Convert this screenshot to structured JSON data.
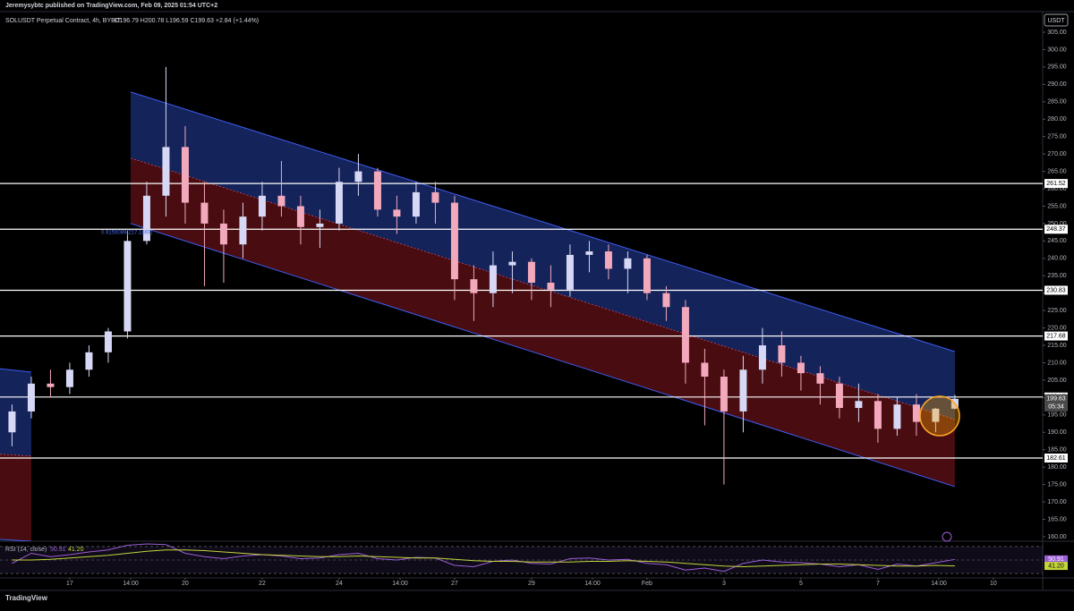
{
  "chart_data": {
    "type": "candlestick",
    "publisher": "Jeremysybtc published on TradingView.com, Feb 09, 2025 01:54 UTC+2",
    "symbol": "SOLUSDT Perpetual Contract, 4h, BYBIT",
    "ohlc_text": "O196.79 H200.78 L196.59 C199.63 +2.84 (+1.44%)",
    "currency": "USDT",
    "countdown": "05:34",
    "fib_label": "0.9155089(217.1869)",
    "brand": "TradingView",
    "up_color": "#d6d8f5",
    "down_color": "#f2a9bb",
    "x": [
      "2025-01-15T12:00",
      "2025-01-16T00:00",
      "2025-01-16T12:00",
      "2025-01-17T00:00",
      "2025-01-17T12:00",
      "2025-01-18T00:00",
      "2025-01-18T12:00",
      "2025-01-19T00:00",
      "2025-01-19T12:00",
      "2025-01-20T00:00",
      "2025-01-20T12:00",
      "2025-01-21T00:00",
      "2025-01-21T12:00",
      "2025-01-22T00:00",
      "2025-01-22T12:00",
      "2025-01-23T00:00",
      "2025-01-23T12:00",
      "2025-01-24T00:00",
      "2025-01-24T12:00",
      "2025-01-25T00:00",
      "2025-01-25T12:00",
      "2025-01-26T00:00",
      "2025-01-26T12:00",
      "2025-01-27T00:00",
      "2025-01-27T12:00",
      "2025-01-28T00:00",
      "2025-01-28T12:00",
      "2025-01-29T00:00",
      "2025-01-29T12:00",
      "2025-01-30T00:00",
      "2025-01-30T12:00",
      "2025-01-31T00:00",
      "2025-01-31T12:00",
      "2025-02-01T00:00",
      "2025-02-01T12:00",
      "2025-02-02T00:00",
      "2025-02-02T12:00",
      "2025-02-03T00:00",
      "2025-02-03T12:00",
      "2025-02-04T00:00",
      "2025-02-04T12:00",
      "2025-02-05T00:00",
      "2025-02-05T12:00",
      "2025-02-06T00:00",
      "2025-02-06T12:00",
      "2025-02-07T00:00",
      "2025-02-07T12:00",
      "2025-02-08T00:00",
      "2025-02-08T12:00",
      "2025-02-09T00:00"
    ],
    "open": [
      190,
      196,
      204,
      203,
      208,
      213,
      219,
      245,
      258,
      272,
      256,
      250,
      244,
      252,
      258,
      255,
      249,
      250,
      262,
      265,
      254,
      252,
      259,
      256,
      234,
      230,
      238,
      239,
      233,
      231,
      241,
      242,
      237,
      240,
      230,
      226,
      210,
      206,
      196,
      208,
      215,
      210,
      207,
      204,
      197,
      199,
      191,
      198,
      193,
      196.79
    ],
    "high": [
      198,
      206,
      208,
      210,
      215,
      220,
      248,
      262,
      295,
      278,
      262,
      254,
      256,
      262,
      268,
      258,
      254,
      266,
      270,
      266,
      258,
      262,
      262,
      258,
      238,
      242,
      242,
      240,
      238,
      244,
      245,
      244,
      242,
      241,
      232,
      228,
      214,
      208,
      212,
      220,
      219,
      212,
      209,
      206,
      204,
      201,
      200,
      201,
      197,
      200.78
    ],
    "low": [
      186,
      194,
      200,
      201,
      206,
      210,
      217,
      244,
      252,
      250,
      232,
      233,
      240,
      248,
      252,
      244,
      243,
      248,
      258,
      252,
      247,
      250,
      250,
      228,
      222,
      226,
      230,
      228,
      226,
      229,
      236,
      234,
      230,
      228,
      222,
      204,
      192,
      175,
      190,
      204,
      206,
      202,
      198,
      194,
      193,
      187,
      189,
      189,
      190,
      196.59
    ],
    "close": [
      196,
      204,
      203,
      208,
      213,
      219,
      245,
      258,
      272,
      256,
      250,
      244,
      252,
      258,
      255,
      249,
      250,
      262,
      265,
      254,
      252,
      259,
      256,
      234,
      230,
      238,
      239,
      233,
      231,
      241,
      242,
      237,
      240,
      230,
      226,
      210,
      206,
      196,
      208,
      215,
      210,
      207,
      204,
      197,
      199,
      191,
      198,
      193,
      196.79,
      199.63
    ],
    "levels": [
      261.52,
      248.37,
      230.83,
      217.68,
      200.15,
      182.61
    ],
    "channels": [
      {
        "start": "2025-01-15T04:30",
        "end": "2025-01-16T00:00",
        "upper": [
          208.3,
          207.3
        ],
        "middle": [
          183.7,
          183.2
        ],
        "lower": [
          159.2,
          158.7
        ]
      },
      {
        "start": "2025-01-18T14:00",
        "end": "2025-02-09T00:00",
        "upper": [
          287.8,
          213.2
        ],
        "middle": [
          268.8,
          193.7
        ],
        "lower": [
          250,
          174.4
        ]
      }
    ],
    "xlim": [
      "2025-01-15T04:30",
      "2025-02-11T06:45"
    ],
    "xticks": [
      {
        "value": "2025-01-17T00:00",
        "label": "17"
      },
      {
        "value": "2025-01-18T14:00",
        "label": "14:00"
      },
      {
        "value": "2025-01-20T00:00",
        "label": "20"
      },
      {
        "value": "2025-01-22T00:00",
        "label": "22"
      },
      {
        "value": "2025-01-24T00:00",
        "label": "24"
      },
      {
        "value": "2025-01-25T14:00",
        "label": "14:00"
      },
      {
        "value": "2025-01-27T00:00",
        "label": "27"
      },
      {
        "value": "2025-01-29T00:00",
        "label": "29"
      },
      {
        "value": "2025-01-30T14:00",
        "label": "14:00"
      },
      {
        "value": "2025-02-01T00:00",
        "label": "Feb"
      },
      {
        "value": "2025-02-03T00:00",
        "label": "3"
      },
      {
        "value": "2025-02-05T00:00",
        "label": "5"
      },
      {
        "value": "2025-02-07T00:00",
        "label": "7"
      },
      {
        "value": "2025-02-08T14:00",
        "label": "14:00"
      },
      {
        "value": "2025-02-10T00:00",
        "label": "10"
      }
    ],
    "ylim": [
      158.7,
      308.6
    ],
    "yticks": [
      {
        "value": 160,
        "label": "160.00"
      },
      {
        "value": 165,
        "label": "165.00"
      },
      {
        "value": 170,
        "label": "170.00"
      },
      {
        "value": 175,
        "label": "175.00"
      },
      {
        "value": 180,
        "label": "180.00"
      },
      {
        "value": 185,
        "label": "185.00"
      },
      {
        "value": 190,
        "label": "190.00"
      },
      {
        "value": 195,
        "label": "195.00"
      },
      {
        "value": 200,
        "label": "200.00"
      },
      {
        "value": 205,
        "label": "205.00"
      },
      {
        "value": 210,
        "label": "210.00"
      },
      {
        "value": 215,
        "label": "215.00"
      },
      {
        "value": 220,
        "label": "220.00"
      },
      {
        "value": 225,
        "label": "225.00"
      },
      {
        "value": 230,
        "label": "230.00"
      },
      {
        "value": 235,
        "label": "235.00"
      },
      {
        "value": 240,
        "label": "240.00"
      },
      {
        "value": 245,
        "label": "245.00"
      },
      {
        "value": 250,
        "label": "250.00"
      },
      {
        "value": 255,
        "label": "255.00"
      },
      {
        "value": 260,
        "label": "260.00"
      },
      {
        "value": 265,
        "label": "265.00"
      },
      {
        "value": 270,
        "label": "270.00"
      },
      {
        "value": 275,
        "label": "275.00"
      },
      {
        "value": 280,
        "label": "280.00"
      },
      {
        "value": 285,
        "label": "285.00"
      },
      {
        "value": 290,
        "label": "290.00"
      },
      {
        "value": 295,
        "label": "295.00"
      },
      {
        "value": 300,
        "label": "300.00"
      },
      {
        "value": 305,
        "label": "305.00"
      }
    ],
    "rsi": {
      "title": "RSI (14, close)",
      "ylim": [
        24.7,
        75.3
      ],
      "levels": [
        70,
        50,
        30
      ],
      "series": [
        {
          "name": "RSI",
          "color": "#9c5fd6",
          "values": [
            45,
            60,
            55,
            58,
            62,
            65,
            72,
            74,
            73,
            60,
            55,
            52,
            56,
            58,
            56,
            52,
            53,
            58,
            60,
            52,
            50,
            54,
            53,
            42,
            40,
            48,
            50,
            45,
            44,
            52,
            53,
            50,
            51,
            45,
            43,
            35,
            38,
            33,
            45,
            50,
            47,
            46,
            44,
            40,
            43,
            36,
            44,
            41,
            46,
            50.91
          ]
        },
        {
          "name": "MA",
          "color": "#c4d63a",
          "last_label": "41.20",
          "values": [
            50,
            50,
            51,
            53,
            55,
            57,
            60,
            63,
            65,
            65,
            64,
            62,
            60,
            58,
            57,
            56,
            55,
            55,
            56,
            55,
            54,
            53,
            53,
            51,
            49,
            48,
            48,
            47,
            47,
            47,
            48,
            48,
            49,
            48,
            47,
            45,
            43,
            41,
            40,
            41,
            42,
            43,
            44,
            44,
            43,
            42,
            41,
            41,
            42,
            41.2
          ]
        }
      ]
    }
  }
}
